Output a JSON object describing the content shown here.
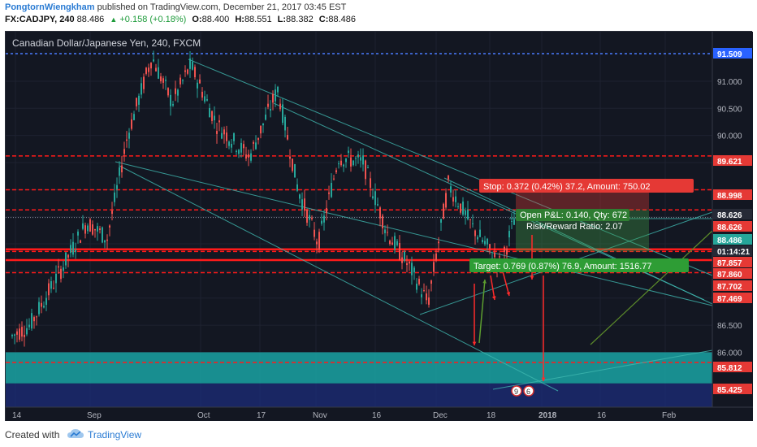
{
  "header": {
    "author": "PongtornWiengkham",
    "published_text": "published on TradingView.com, December 21, 2017 03:45 EST",
    "symbol": "FX:CADJPY, 240",
    "last": "88.486",
    "change": "+0.158 (+0.18%)",
    "o_label": "O:",
    "o_value": "88.400",
    "h_label": "H:",
    "h_value": "88.551",
    "l_label": "L:",
    "l_value": "88.382",
    "c_label": "C:",
    "c_value": "88.486"
  },
  "chart": {
    "title": "Canadian Dollar/Japanese Yen, 240, FXCM",
    "price_ticks": [
      "91.000",
      "90.500",
      "90.000",
      "89.500",
      "87.000",
      "86.500",
      "86.000"
    ],
    "x_ticks": [
      "14",
      "Sep",
      "Oct",
      "17",
      "Nov",
      "16",
      "Dec",
      "18",
      "2018",
      "16",
      "Feb"
    ],
    "price_tags": [
      {
        "value": "91.509",
        "kind": "blue"
      },
      {
        "value": "89.621",
        "kind": "red"
      },
      {
        "value": "88.998",
        "kind": "red"
      },
      {
        "value": "88.626",
        "kind": "dark"
      },
      {
        "value": "88.626",
        "kind": "red"
      },
      {
        "value": "88.486",
        "kind": "green"
      },
      {
        "value": "01:14:21",
        "kind": "dark"
      },
      {
        "value": "87.857",
        "kind": "red"
      },
      {
        "value": "87.860",
        "kind": "red"
      },
      {
        "value": "87.702",
        "kind": "red"
      },
      {
        "value": "87.469",
        "kind": "red"
      },
      {
        "value": "85.812",
        "kind": "red"
      },
      {
        "value": "85.425",
        "kind": "red"
      }
    ],
    "stop_label": "Stop: 0.372 (0.42%) 37.2, Amount: 750.02",
    "pnl_label": "Open P&L: 0.140, Qty: 672",
    "rr_label": "Risk/Reward Ratio: 2.07",
    "target_label": "Target: 0.769 (0.87%) 76.9, Amount: 1516.77",
    "event_badges": [
      "9",
      "6"
    ],
    "colors": {
      "background": "#131722",
      "bull": "#26a69a",
      "bear": "#ef5350",
      "support": "#ff1a1a",
      "channel": "#3fb8b0",
      "zone": "#1aa3a3"
    }
  },
  "footer": {
    "created_with": "Created with",
    "brand": "TradingView",
    "brand_icon": "tradingview-cloud-icon"
  }
}
